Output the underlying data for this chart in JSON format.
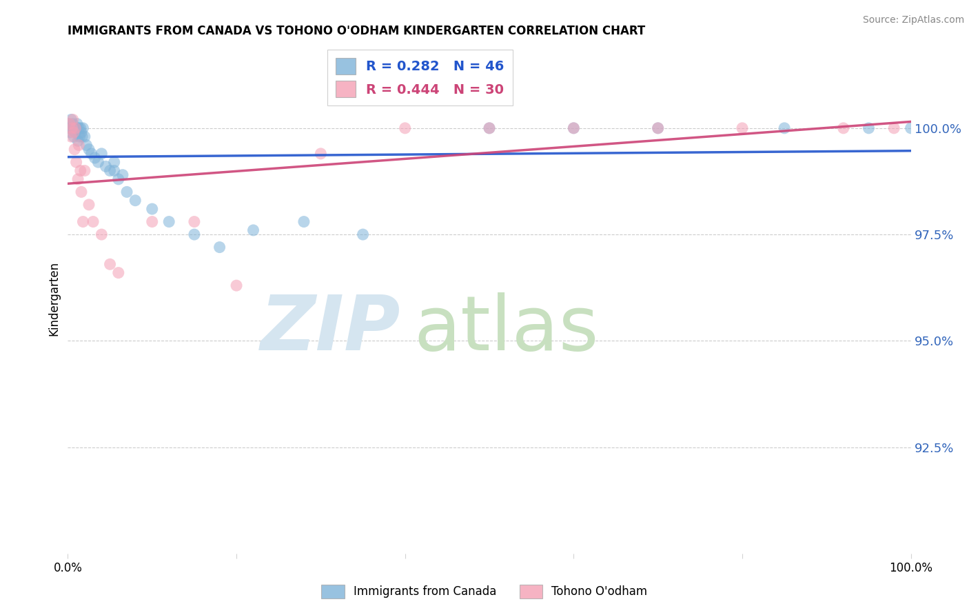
{
  "title": "IMMIGRANTS FROM CANADA VS TOHONO O'ODHAM KINDERGARTEN CORRELATION CHART",
  "source": "Source: ZipAtlas.com",
  "ylabel": "Kindergarten",
  "legend_label1": "Immigrants from Canada",
  "legend_label2": "Tohono O'odham",
  "r1": 0.282,
  "n1": 46,
  "r2": 0.444,
  "n2": 30,
  "color1": "#7FB3D9",
  "color2": "#F4A0B5",
  "trendline1_color": "#2255CC",
  "trendline2_color": "#CC4477",
  "x_min": 0.0,
  "x_max": 1.0,
  "y_min": 90.0,
  "y_max": 102.0,
  "y_ticks": [
    92.5,
    95.0,
    97.5,
    100.0
  ],
  "blue_x": [
    0.001,
    0.002,
    0.003,
    0.004,
    0.005,
    0.006,
    0.007,
    0.008,
    0.009,
    0.01,
    0.011,
    0.012,
    0.013,
    0.014,
    0.015,
    0.016,
    0.017,
    0.018,
    0.02,
    0.022,
    0.025,
    0.028,
    0.032,
    0.036,
    0.04,
    0.045,
    0.05,
    0.055,
    0.06,
    0.07,
    0.08,
    0.1,
    0.12,
    0.15,
    0.055,
    0.065,
    0.18,
    0.22,
    0.28,
    0.35,
    0.5,
    0.6,
    0.7,
    0.85,
    0.95,
    1.0
  ],
  "blue_y": [
    100.1,
    100.0,
    99.9,
    100.2,
    100.0,
    100.1,
    99.8,
    100.0,
    99.9,
    100.0,
    100.1,
    99.7,
    100.0,
    99.8,
    100.0,
    99.9,
    99.8,
    100.0,
    99.8,
    99.6,
    99.5,
    99.4,
    99.3,
    99.2,
    99.4,
    99.1,
    99.0,
    99.0,
    98.8,
    98.5,
    98.3,
    98.1,
    97.8,
    97.5,
    99.2,
    98.9,
    97.2,
    97.6,
    97.8,
    97.5,
    100.0,
    100.0,
    100.0,
    100.0,
    100.0,
    100.0
  ],
  "pink_x": [
    0.002,
    0.004,
    0.005,
    0.006,
    0.007,
    0.008,
    0.009,
    0.01,
    0.012,
    0.013,
    0.015,
    0.016,
    0.018,
    0.02,
    0.025,
    0.03,
    0.04,
    0.05,
    0.06,
    0.1,
    0.15,
    0.2,
    0.3,
    0.4,
    0.5,
    0.6,
    0.7,
    0.8,
    0.92,
    0.98
  ],
  "pink_y": [
    100.1,
    99.8,
    100.0,
    100.2,
    99.9,
    99.5,
    100.0,
    99.2,
    98.8,
    99.6,
    99.0,
    98.5,
    97.8,
    99.0,
    98.2,
    97.8,
    97.5,
    96.8,
    96.6,
    97.8,
    97.8,
    96.3,
    99.4,
    100.0,
    100.0,
    100.0,
    100.0,
    100.0,
    100.0,
    100.0
  ]
}
